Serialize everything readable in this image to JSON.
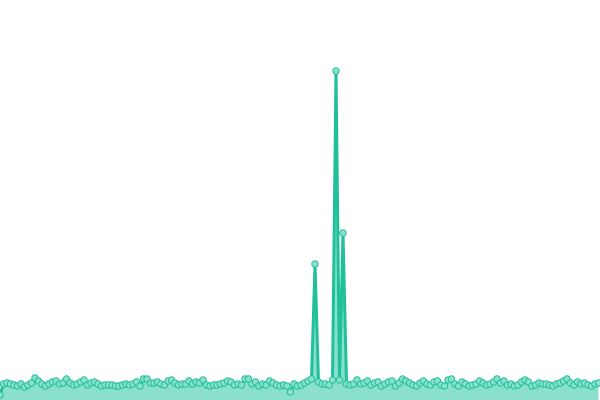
{
  "chart_data": {
    "type": "area",
    "title": "",
    "xlabel": "",
    "ylabel": "",
    "x_axis_visible": false,
    "y_axis_visible": false,
    "grid": false,
    "legend": "none",
    "ylim": [
      0,
      400
    ],
    "colors": {
      "line": "#20c09a",
      "fill": "#8ae0cc",
      "marker_fill": "#8ae0cc",
      "marker_stroke": "#20c09a"
    },
    "series": [
      {
        "values": [
          5,
          16,
          17,
          16,
          15,
          14,
          16,
          13,
          15,
          17,
          22,
          19,
          16,
          14,
          16,
          18,
          19,
          16,
          17,
          21,
          17,
          15,
          16,
          18,
          20,
          15,
          17,
          18,
          16,
          14,
          15,
          15,
          15,
          14,
          14,
          15,
          16,
          15,
          16,
          18,
          14,
          21,
          21,
          17,
          17,
          18,
          16,
          15,
          19,
          20,
          17,
          15,
          16,
          16,
          19,
          16,
          18,
          17,
          20,
          15,
          14,
          15,
          15,
          16,
          17,
          19,
          18,
          15,
          16,
          15,
          21,
          21,
          16,
          18,
          14,
          16,
          15,
          19,
          17,
          15,
          14,
          15,
          14,
          8,
          16,
          14,
          15,
          17,
          19,
          21,
          136,
          18,
          16,
          16,
          15,
          20,
          329,
          20,
          167,
          16,
          15,
          16,
          20,
          16,
          17,
          19,
          15,
          17,
          18,
          14,
          16,
          18,
          19,
          14,
          17,
          21,
          19,
          17,
          15,
          14,
          17,
          19,
          16,
          15,
          18,
          19,
          15,
          14,
          20,
          21,
          16,
          14,
          18,
          16,
          14,
          15,
          16,
          19,
          17,
          15,
          16,
          18,
          21,
          17,
          19,
          15,
          16,
          14,
          15,
          18,
          20,
          18,
          14,
          15,
          17,
          16,
          16,
          15,
          14,
          16,
          17,
          19,
          21,
          17,
          15,
          18,
          16,
          17,
          15,
          14,
          16,
          17
        ]
      }
    ]
  }
}
